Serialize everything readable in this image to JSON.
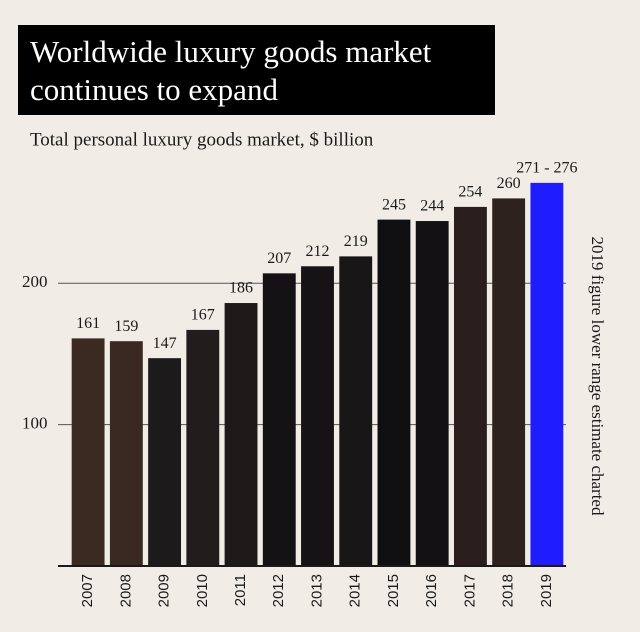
{
  "chart_data": {
    "type": "bar",
    "title": [
      "Worldwide luxury goods market",
      "continues to expand"
    ],
    "subtitle": "Total personal luxury goods market, $ billion",
    "annotation": "2019 figure lower range estimate charted",
    "categories": [
      "2007",
      "2008",
      "2009",
      "2010",
      "2011",
      "2012",
      "2013",
      "2014",
      "2015",
      "2016",
      "2017",
      "2018",
      "2019"
    ],
    "values": [
      161,
      159,
      147,
      167,
      186,
      207,
      212,
      219,
      245,
      244,
      254,
      260,
      271
    ],
    "value_labels": [
      "161",
      "159",
      "147",
      "167",
      "186",
      "207",
      "212",
      "219",
      "245",
      "244",
      "254",
      "260",
      "271 - 276"
    ],
    "colors": [
      "#3b2a22",
      "#3a2922",
      "#1c1a1b",
      "#221d1c",
      "#1f1a1a",
      "#141214",
      "#151315",
      "#181617",
      "#0f0e10",
      "#131113",
      "#2a1f1d",
      "#2e221f",
      "#1f1cff"
    ],
    "ylim": [
      0,
      290
    ],
    "yticks": [
      100,
      200
    ],
    "grid": true
  }
}
